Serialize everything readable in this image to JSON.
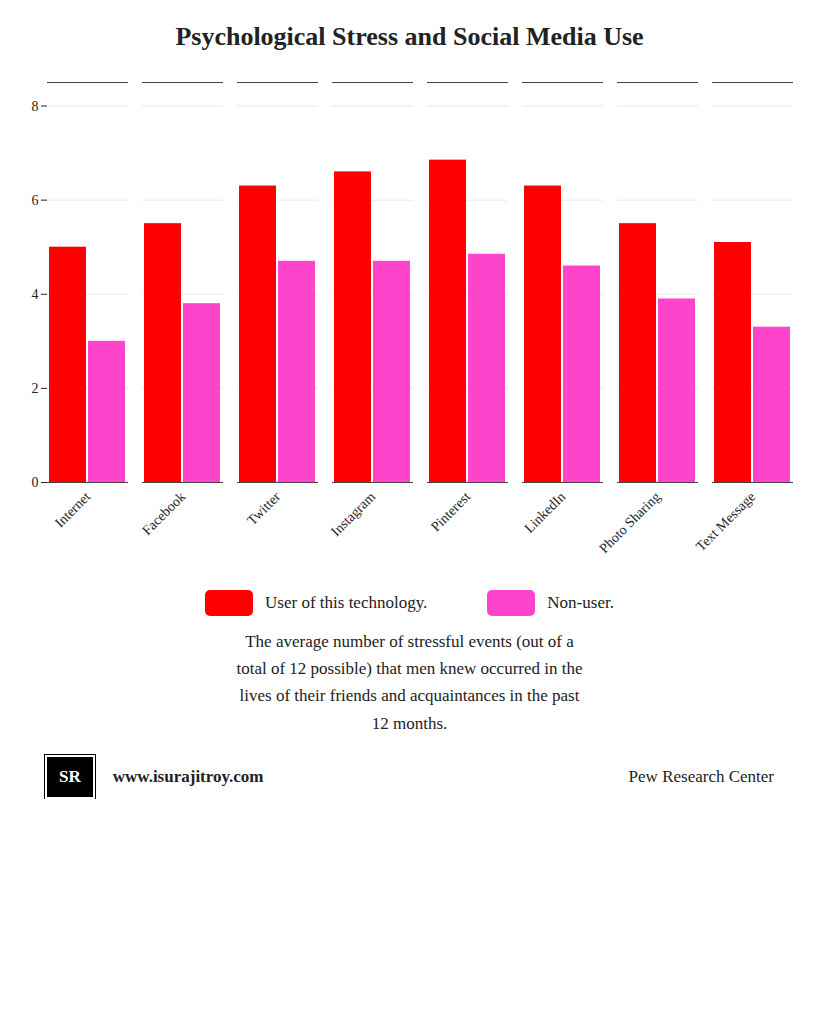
{
  "chart_data": {
    "type": "bar",
    "title": "Psychological Stress and Social Media Use",
    "categories": [
      "Internet",
      "Facebook",
      "Twitter",
      "Instagram",
      "Pinterest",
      "LinkedIn",
      "Photo Sharing",
      "Text Message"
    ],
    "series": [
      {
        "name": "User of this technology.",
        "color": "#FF0000",
        "values": [
          5.0,
          5.5,
          6.3,
          6.6,
          6.85,
          6.3,
          5.5,
          5.1
        ]
      },
      {
        "name": "Non-user.",
        "color": "#FF44CC",
        "values": [
          3.0,
          3.8,
          4.7,
          4.7,
          4.85,
          4.6,
          3.9,
          3.3
        ]
      }
    ],
    "ylim": [
      0,
      8.5
    ],
    "yticks": [
      0,
      2,
      4,
      6,
      8
    ],
    "grid": true,
    "legend": "bottom",
    "annotations": [
      "The average number of stressful events (out of a\ntotal of 12 possible) that men knew occurred in the\nlives of their friends and acquaintances in the past\n12 months.",
      "SR",
      "www.isurajitroy.com",
      "Pew Research Center"
    ]
  }
}
